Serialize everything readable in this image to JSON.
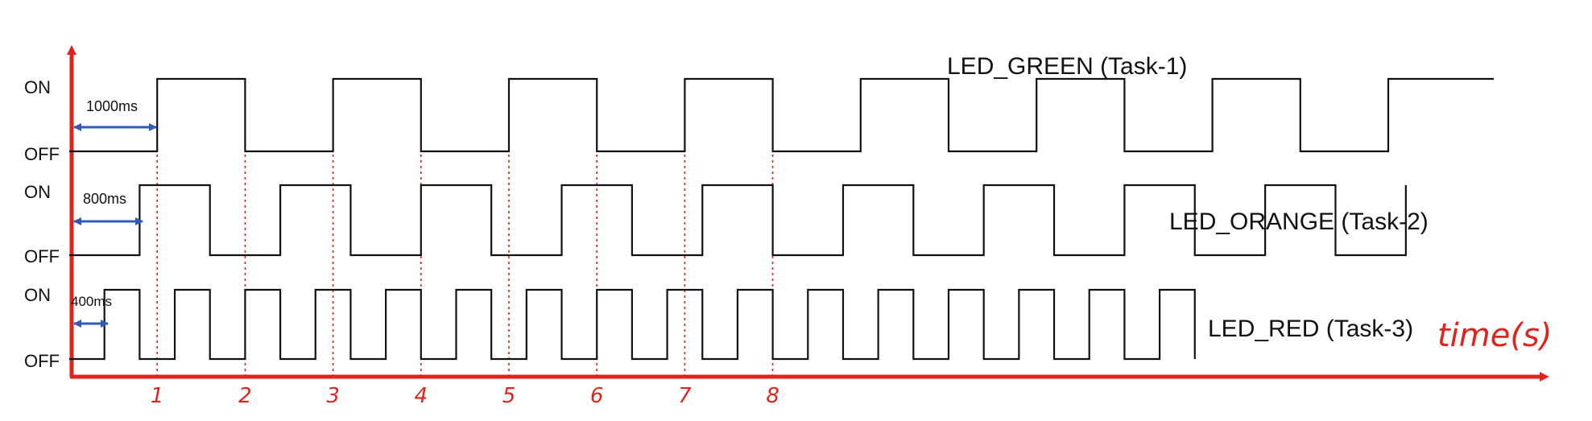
{
  "diagram": {
    "level_labels": {
      "on": "ON",
      "off": "OFF"
    },
    "signals": [
      {
        "name": "LED_GREEN (Task-1)",
        "initial_delay_label": "1000ms",
        "start_level": "OFF",
        "edge_times_s": [
          1,
          2,
          3,
          4,
          5,
          6,
          7,
          8,
          9,
          10,
          11,
          12,
          13,
          14,
          15
        ],
        "end_time_s": 16.2
      },
      {
        "name": "LED_ORANGE (Task-2)",
        "initial_delay_label": "800ms",
        "start_level": "OFF",
        "edge_times_s": [
          0.8,
          1.6,
          2.4,
          3.2,
          4.0,
          4.8,
          5.6,
          6.4,
          7.2,
          8.0,
          8.8,
          9.6,
          10.4,
          11.2,
          12.0,
          12.8,
          13.6,
          14.4,
          15.2
        ],
        "end_time_s": 15.2
      },
      {
        "name": "LED_RED (Task-3)",
        "initial_delay_label": "400ms",
        "start_level": "OFF",
        "edge_times_s": [
          0.4,
          0.8,
          1.2,
          1.6,
          2.0,
          2.4,
          2.8,
          3.2,
          3.6,
          4.0,
          4.4,
          4.8,
          5.2,
          5.6,
          6.0,
          6.4,
          6.8,
          7.2,
          7.6,
          8.0,
          8.4,
          8.8,
          9.2,
          9.6,
          10.0,
          10.4,
          10.8,
          11.2,
          11.6,
          12.0,
          12.4,
          12.8
        ],
        "end_time_s": 12.8
      }
    ],
    "time_axis": {
      "label": "time(s)",
      "ticks": [
        "1",
        "2",
        "3",
        "4",
        "5",
        "6",
        "7",
        "8"
      ]
    },
    "colors": {
      "axis": "#e0241b",
      "signal": "#111111",
      "delay_arrow": "#2f5bb7",
      "marker_line": "#e0241b"
    }
  }
}
